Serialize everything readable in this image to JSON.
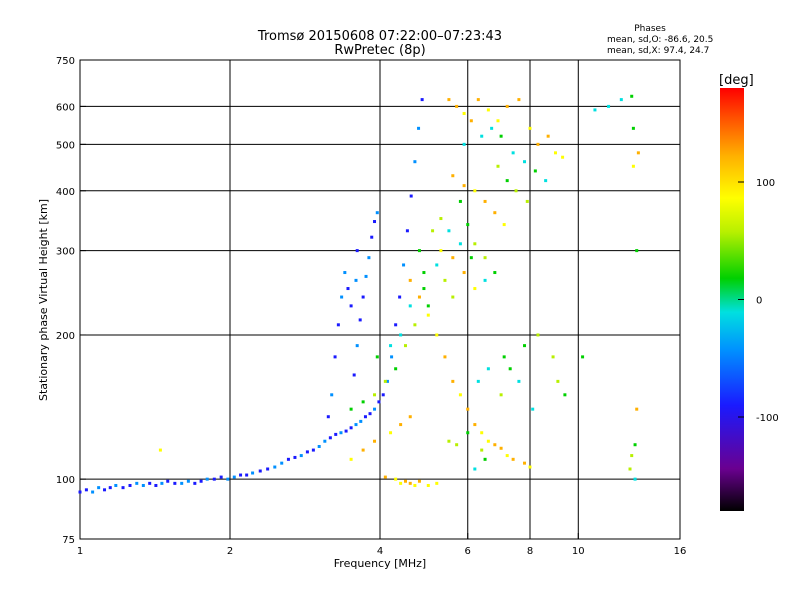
{
  "chart_data": {
    "type": "scatter",
    "title": "Tromsø 20150608 07:22:00–07:23:43",
    "subtitle": "RwPretec (8p)",
    "xlabel": "Frequency [MHz]",
    "ylabel": "Stationary phase Virtual Height [km]",
    "x_scale": "log",
    "y_scale": "log",
    "xlim": [
      1,
      16
    ],
    "ylim": [
      75,
      750
    ],
    "x_ticks": [
      1,
      2,
      4,
      6,
      8,
      10,
      16
    ],
    "y_ticks": [
      75,
      100,
      200,
      300,
      400,
      500,
      600,
      750
    ],
    "grid": true,
    "stats": {
      "heading": "Phases",
      "line_o": "mean, sd,O: -86.6, 20.5",
      "line_x": "mean, sd,X:  97.4, 24.7"
    },
    "colorbar": {
      "label": "[deg]",
      "range": [
        -180,
        180
      ],
      "ticks": [
        100,
        0,
        -100
      ],
      "palette": [
        "#000000",
        "#6a0090",
        "#1a1aff",
        "#0090ff",
        "#00e0e0",
        "#00d000",
        "#b8f000",
        "#ffff00",
        "#ffb000",
        "#ff5000",
        "#ff0000"
      ]
    },
    "series": [
      {
        "kind": "traces",
        "phase": -95,
        "points": [
          [
            1.0,
            94
          ],
          [
            1.03,
            95
          ],
          [
            1.06,
            94
          ],
          [
            1.09,
            96
          ],
          [
            1.12,
            95
          ],
          [
            1.15,
            96
          ],
          [
            1.18,
            97
          ],
          [
            1.22,
            96
          ],
          [
            1.26,
            97
          ],
          [
            1.3,
            98
          ],
          [
            1.34,
            97
          ],
          [
            1.38,
            98
          ],
          [
            1.42,
            97
          ],
          [
            1.46,
            98
          ],
          [
            1.5,
            99
          ],
          [
            1.55,
            98
          ],
          [
            1.6,
            98
          ],
          [
            1.65,
            99
          ],
          [
            1.7,
            98
          ],
          [
            1.75,
            99
          ],
          [
            1.8,
            100
          ],
          [
            1.86,
            100
          ],
          [
            1.92,
            101
          ],
          [
            1.98,
            100
          ],
          [
            2.04,
            101
          ],
          [
            2.1,
            102
          ],
          [
            2.16,
            102
          ],
          [
            2.22,
            103
          ],
          [
            2.3,
            104
          ],
          [
            2.38,
            105
          ],
          [
            2.46,
            106
          ],
          [
            2.54,
            108
          ],
          [
            2.62,
            110
          ],
          [
            2.7,
            111
          ],
          [
            2.78,
            112
          ],
          [
            2.86,
            114
          ],
          [
            2.94,
            115
          ],
          [
            3.02,
            117
          ],
          [
            3.1,
            120
          ],
          [
            3.18,
            122
          ],
          [
            3.26,
            124
          ],
          [
            3.34,
            125
          ],
          [
            3.42,
            126
          ],
          [
            3.5,
            128
          ],
          [
            3.58,
            130
          ],
          [
            3.66,
            132
          ],
          [
            3.74,
            135
          ],
          [
            3.82,
            137
          ],
          [
            3.9,
            140
          ],
          [
            3.98,
            145
          ],
          [
            4.06,
            150
          ],
          [
            4.14,
            160
          ],
          [
            4.22,
            180
          ],
          [
            4.3,
            210
          ],
          [
            4.38,
            240
          ],
          [
            4.46,
            280
          ],
          [
            4.54,
            330
          ],
          [
            4.62,
            390
          ],
          [
            4.7,
            460
          ],
          [
            4.78,
            540
          ],
          [
            4.86,
            620
          ],
          [
            3.55,
            165
          ],
          [
            3.6,
            190
          ],
          [
            3.65,
            215
          ],
          [
            3.7,
            240
          ],
          [
            3.75,
            265
          ],
          [
            3.8,
            290
          ],
          [
            3.85,
            320
          ],
          [
            3.9,
            345
          ],
          [
            3.95,
            360
          ],
          [
            3.5,
            230
          ],
          [
            3.45,
            250
          ],
          [
            3.4,
            270
          ],
          [
            3.35,
            240
          ],
          [
            3.3,
            210
          ],
          [
            3.25,
            180
          ],
          [
            3.2,
            150
          ],
          [
            3.15,
            135
          ],
          [
            3.6,
            300
          ],
          [
            3.58,
            260
          ]
        ]
      },
      {
        "kind": "scatter",
        "phase": 95,
        "points": [
          [
            4.3,
            100
          ],
          [
            4.4,
            98
          ],
          [
            4.5,
            99
          ],
          [
            4.6,
            98
          ],
          [
            4.7,
            97
          ],
          [
            4.8,
            99
          ],
          [
            4.1,
            101
          ],
          [
            5.0,
            97
          ],
          [
            5.2,
            98
          ],
          [
            5.5,
            620
          ],
          [
            5.7,
            600
          ],
          [
            5.9,
            580
          ],
          [
            6.1,
            560
          ],
          [
            6.3,
            620
          ],
          [
            6.6,
            590
          ],
          [
            6.9,
            560
          ],
          [
            7.2,
            600
          ],
          [
            7.6,
            620
          ],
          [
            8.0,
            540
          ],
          [
            8.3,
            500
          ],
          [
            8.7,
            520
          ],
          [
            9.0,
            480
          ],
          [
            9.3,
            470
          ],
          [
            5.6,
            430
          ],
          [
            5.9,
            410
          ],
          [
            6.2,
            400
          ],
          [
            6.5,
            380
          ],
          [
            6.8,
            360
          ],
          [
            7.1,
            340
          ],
          [
            5.3,
            300
          ],
          [
            5.6,
            290
          ],
          [
            5.9,
            270
          ],
          [
            6.2,
            250
          ],
          [
            4.6,
            260
          ],
          [
            4.8,
            240
          ],
          [
            5.0,
            220
          ],
          [
            5.2,
            200
          ],
          [
            5.4,
            180
          ],
          [
            5.6,
            160
          ],
          [
            5.8,
            150
          ],
          [
            6.0,
            140
          ],
          [
            6.2,
            130
          ],
          [
            6.4,
            125
          ],
          [
            6.6,
            120
          ],
          [
            6.8,
            118
          ],
          [
            7.0,
            116
          ],
          [
            7.2,
            112
          ],
          [
            7.4,
            110
          ],
          [
            7.8,
            108
          ],
          [
            8.0,
            106
          ],
          [
            3.5,
            110
          ],
          [
            3.7,
            115
          ],
          [
            3.9,
            120
          ],
          [
            4.2,
            125
          ],
          [
            4.4,
            130
          ],
          [
            4.6,
            135
          ],
          [
            1.45,
            115
          ],
          [
            12.9,
            450
          ],
          [
            13.2,
            480
          ],
          [
            13.1,
            140
          ]
        ]
      },
      {
        "kind": "scatter",
        "phase": 20,
        "points": [
          [
            5.8,
            380
          ],
          [
            6.0,
            340
          ],
          [
            6.2,
            310
          ],
          [
            6.5,
            290
          ],
          [
            6.8,
            270
          ],
          [
            5.4,
            260
          ],
          [
            5.6,
            240
          ],
          [
            5.0,
            230
          ],
          [
            4.8,
            300
          ],
          [
            4.7,
            210
          ],
          [
            4.5,
            190
          ],
          [
            4.3,
            170
          ],
          [
            4.1,
            160
          ],
          [
            3.9,
            150
          ],
          [
            3.7,
            145
          ],
          [
            3.5,
            140
          ],
          [
            5.5,
            120
          ],
          [
            5.7,
            118
          ],
          [
            6.0,
            125
          ],
          [
            6.4,
            115
          ],
          [
            7.0,
            150
          ],
          [
            7.3,
            170
          ],
          [
            7.8,
            190
          ],
          [
            8.3,
            200
          ],
          [
            6.9,
            450
          ],
          [
            7.2,
            420
          ],
          [
            7.5,
            400
          ],
          [
            7.9,
            380
          ],
          [
            12.9,
            540
          ],
          [
            13.1,
            300
          ],
          [
            12.7,
            105
          ],
          [
            12.8,
            112
          ],
          [
            13.0,
            118
          ],
          [
            8.9,
            180
          ],
          [
            9.1,
            160
          ],
          [
            9.4,
            150
          ],
          [
            10.2,
            180
          ],
          [
            5.1,
            330
          ],
          [
            5.3,
            350
          ],
          [
            4.9,
            270
          ]
        ]
      },
      {
        "kind": "scatter",
        "phase": -30,
        "points": [
          [
            5.9,
            500
          ],
          [
            6.4,
            520
          ],
          [
            6.7,
            540
          ],
          [
            7.0,
            520
          ],
          [
            7.4,
            480
          ],
          [
            7.8,
            460
          ],
          [
            8.2,
            440
          ],
          [
            8.6,
            420
          ],
          [
            5.5,
            330
          ],
          [
            5.8,
            310
          ],
          [
            6.1,
            290
          ],
          [
            6.5,
            260
          ],
          [
            5.2,
            280
          ],
          [
            4.9,
            250
          ],
          [
            4.6,
            230
          ],
          [
            4.4,
            200
          ],
          [
            4.2,
            190
          ],
          [
            3.95,
            180
          ],
          [
            6.3,
            160
          ],
          [
            6.6,
            170
          ],
          [
            7.1,
            180
          ],
          [
            7.6,
            160
          ],
          [
            8.1,
            140
          ],
          [
            6.2,
            105
          ],
          [
            6.5,
            110
          ],
          [
            11.5,
            600
          ],
          [
            12.2,
            620
          ],
          [
            12.8,
            630
          ],
          [
            10.8,
            590
          ],
          [
            13.0,
            100
          ]
        ]
      }
    ]
  }
}
